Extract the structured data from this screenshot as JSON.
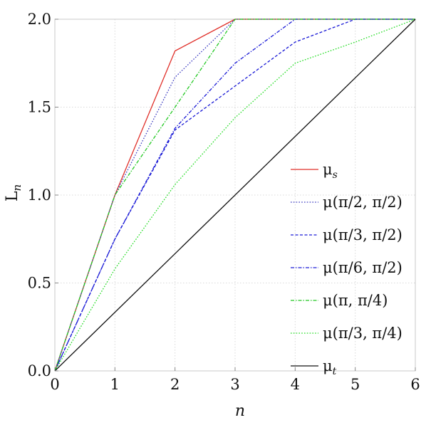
{
  "chart_data": {
    "type": "line",
    "title": "",
    "xlabel": "n",
    "ylabel": "L",
    "ylabel_sub": "n",
    "xlim": [
      0,
      6
    ],
    "ylim": [
      0,
      2
    ],
    "x_ticks": [
      {
        "value": 0,
        "label": "0"
      },
      {
        "value": 1,
        "label": "1"
      },
      {
        "value": 2,
        "label": "2"
      },
      {
        "value": 3,
        "label": "3"
      },
      {
        "value": 4,
        "label": "4"
      },
      {
        "value": 5,
        "label": "5"
      },
      {
        "value": 6,
        "label": "6"
      }
    ],
    "y_ticks": [
      {
        "value": 0,
        "label": "0.0"
      },
      {
        "value": 0.5,
        "label": "0.5"
      },
      {
        "value": 1,
        "label": "1.0"
      },
      {
        "value": 1.5,
        "label": "1.5"
      },
      {
        "value": 2,
        "label": "2.0"
      }
    ],
    "grid": true,
    "legend_position": "center-right",
    "series": [
      {
        "name": "μs",
        "name_base": "μ",
        "name_sub": "s",
        "color": "#e0302a",
        "dash": "solid",
        "x": [
          0,
          1,
          2,
          3,
          4,
          5,
          6
        ],
        "y": [
          0,
          1.0,
          1.82,
          2.0,
          2.0,
          2.0,
          2.0
        ]
      },
      {
        "name": "μ(π/2, π/2)",
        "color": "#3a3ac0",
        "dash": "dot",
        "x": [
          0,
          1,
          2,
          3,
          4,
          5,
          6
        ],
        "y": [
          0,
          1.0,
          1.67,
          2.0,
          2.0,
          2.0,
          2.0
        ]
      },
      {
        "name": "μ(π/3, π/2)",
        "color": "#1a1ad6",
        "dash": "dash",
        "x": [
          0,
          1,
          2,
          3,
          4,
          5,
          6
        ],
        "y": [
          0,
          0.75,
          1.37,
          1.62,
          1.87,
          2.0,
          2.0
        ]
      },
      {
        "name": "μ(π/6, π/2)",
        "color": "#1a1ad6",
        "dash": "dashdot",
        "x": [
          0,
          1,
          2,
          3,
          4,
          5,
          6
        ],
        "y": [
          0,
          0.75,
          1.38,
          1.75,
          2.0,
          2.0,
          2.0
        ]
      },
      {
        "name": "μ(π, π/4)",
        "color": "#22c822",
        "dash": "dashdot",
        "x": [
          0,
          1,
          2,
          3,
          4,
          5,
          6
        ],
        "y": [
          0,
          1.0,
          1.5,
          2.0,
          2.0,
          2.0,
          2.0
        ]
      },
      {
        "name": "μ(π/3, π/4)",
        "color": "#22dc22",
        "dash": "dot",
        "x": [
          0,
          1,
          2,
          3,
          4,
          5,
          6
        ],
        "y": [
          0,
          0.58,
          1.06,
          1.44,
          1.75,
          1.87,
          2.0
        ]
      },
      {
        "name": "μt",
        "name_base": "μ",
        "name_sub": "t",
        "color": "#111111",
        "dash": "solid",
        "x": [
          0,
          6
        ],
        "y": [
          0,
          2.0
        ]
      }
    ]
  }
}
